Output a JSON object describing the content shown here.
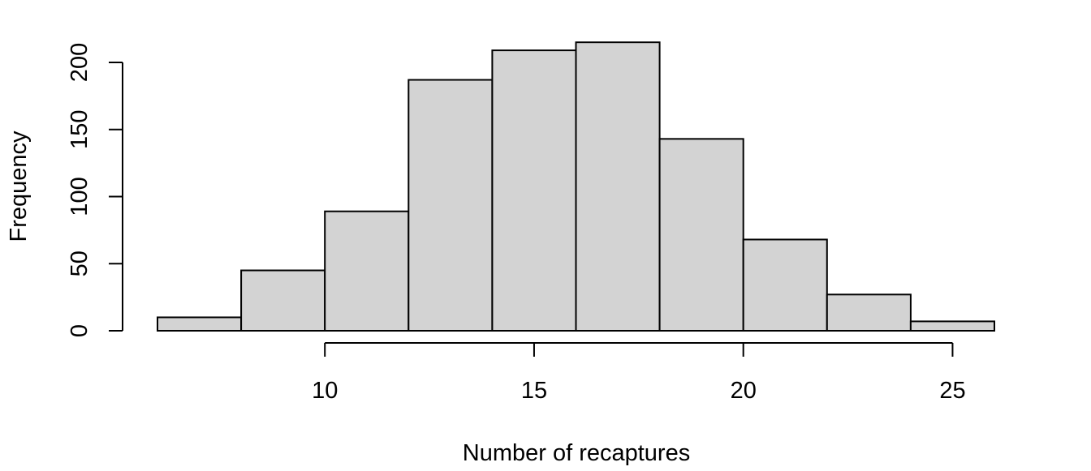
{
  "chart_data": {
    "type": "bar",
    "title": "",
    "xlabel": "Number of recaptures",
    "ylabel": "Frequency",
    "bins": [
      {
        "start": 6,
        "end": 8,
        "count": 10
      },
      {
        "start": 8,
        "end": 10,
        "count": 45
      },
      {
        "start": 10,
        "end": 12,
        "count": 89
      },
      {
        "start": 12,
        "end": 14,
        "count": 187
      },
      {
        "start": 14,
        "end": 16,
        "count": 209
      },
      {
        "start": 16,
        "end": 18,
        "count": 215
      },
      {
        "start": 18,
        "end": 20,
        "count": 143
      },
      {
        "start": 20,
        "end": 22,
        "count": 68
      },
      {
        "start": 22,
        "end": 24,
        "count": 27
      },
      {
        "start": 24,
        "end": 26,
        "count": 7
      }
    ],
    "xlim": [
      6,
      26
    ],
    "ylim": [
      0,
      215
    ],
    "x_ticks": [
      10,
      15,
      20,
      25
    ],
    "y_ticks": [
      0,
      50,
      100,
      150,
      200
    ],
    "bar_fill": "#d3d3d3",
    "bar_stroke": "#000000",
    "grid": false
  }
}
